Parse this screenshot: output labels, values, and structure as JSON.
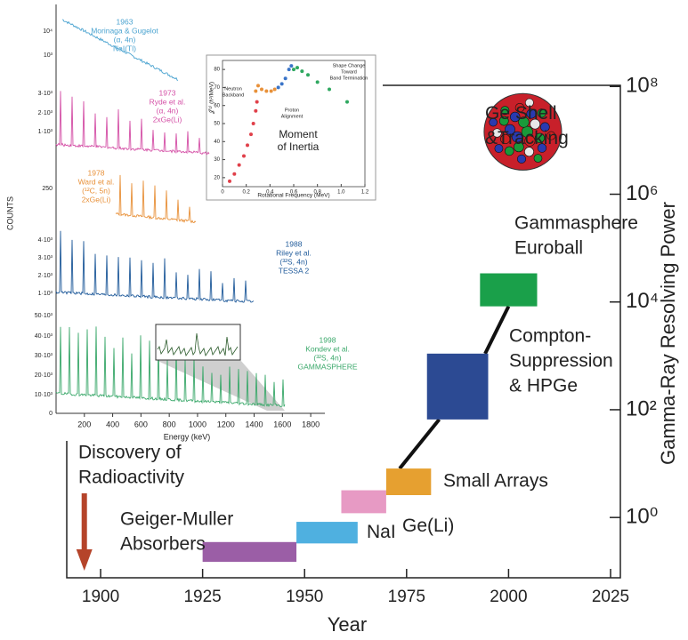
{
  "chart_data": [
    {
      "type": "range",
      "xlabel": "Year",
      "ylabel": "Gamma-Ray Resolving Power",
      "log_y": true,
      "xlim": [
        1891.7,
        2027.4
      ],
      "xticks": [
        1900,
        1925,
        1950,
        1975,
        2000,
        2025
      ],
      "ylim": [
        0.076,
        105000000
      ],
      "yticks": [
        {
          "value": 1,
          "label": "10⁰"
        },
        {
          "value": 100,
          "label": "10²"
        },
        {
          "value": 10000,
          "label": "10⁴"
        },
        {
          "value": 1000000,
          "label": "10⁶"
        },
        {
          "value": 100000000,
          "label": "10⁸"
        }
      ],
      "items": [
        {
          "label": [
            "Geiger-Muller",
            "Absorbers"
          ],
          "color": "#9b5ea6",
          "x": [
            1925,
            1948
          ],
          "y": [
            0.15,
            0.35
          ]
        },
        {
          "label": [
            "NaI"
          ],
          "color": "#4fb0e0",
          "x": [
            1948,
            1963
          ],
          "y": [
            0.33,
            0.83
          ]
        },
        {
          "label": [
            "Ge(Li)"
          ],
          "color": "#e79ac4",
          "x": [
            1959,
            1970
          ],
          "y": [
            1.2,
            3.2
          ]
        },
        {
          "label": [
            "Small Arrays"
          ],
          "color": "#e6a030",
          "x": [
            1970,
            1981
          ],
          "y": [
            2.6,
            8.1
          ]
        },
        {
          "label": [
            "Compton-",
            "Suppression",
            "& HPGe"
          ],
          "color": "#2c4a93",
          "x": [
            1980,
            1995
          ],
          "y": [
            66,
            1100
          ]
        },
        {
          "label": [
            "Gammasphere",
            "Euroball"
          ],
          "color": "#1aa04a",
          "x": [
            1993,
            2007
          ],
          "y": [
            8300,
            34000
          ]
        },
        {
          "label": [
            "Ge Shell",
            "&Tracking"
          ],
          "shape": "sphere",
          "color": "#c8202a",
          "x": [
            1994,
            2013
          ],
          "y": [
            2800000,
            74000000
          ]
        }
      ],
      "annotation": {
        "text": [
          "Discovery of",
          "Radioactivity"
        ],
        "x": 1896,
        "color": "#b5442a"
      }
    },
    {
      "type": "scatter",
      "title": [
        "Moment",
        "of Inertia"
      ],
      "xlabel": "Rotational Frequency (MeV)",
      "ylabel": "𝒥⁽¹⁾ (ℏ²/MeV)",
      "xlim": [
        0,
        1.2
      ],
      "xticks": [
        0,
        0.2,
        0.4,
        0.6,
        0.8,
        {
          "value": 1,
          "label": "1.0"
        },
        1.2
      ],
      "ylim": [
        15,
        85
      ],
      "yticks": [
        20,
        30,
        40,
        50,
        60,
        70,
        80
      ],
      "series": [
        {
          "color": "#e0404a",
          "x": [
            0.06,
            0.1,
            0.14,
            0.18,
            0.21,
            0.24,
            0.26,
            0.28,
            0.29
          ],
          "y": [
            18,
            22,
            27,
            32,
            38,
            44,
            50,
            57,
            62
          ]
        },
        {
          "color": "#e8913a",
          "x": [
            0.28,
            0.3,
            0.33,
            0.37,
            0.41,
            0.44
          ],
          "y": [
            68,
            71,
            69,
            68,
            68,
            69
          ]
        },
        {
          "color": "#3a74c8",
          "x": [
            0.47,
            0.5,
            0.53,
            0.56,
            0.58
          ],
          "y": [
            70,
            72,
            75,
            80,
            82
          ]
        },
        {
          "color": "#2fa860",
          "x": [
            0.6,
            0.63,
            0.67,
            0.72,
            0.8,
            0.9,
            1.05
          ],
          "y": [
            80,
            81,
            79,
            77,
            73,
            69,
            62
          ]
        }
      ],
      "annotations": [
        {
          "text": [
            "Neutron",
            "Backband"
          ]
        },
        {
          "text": [
            "Proton",
            "Alignment"
          ]
        },
        {
          "text": [
            "Shape Change",
            "Toward",
            "Band Termination"
          ]
        }
      ]
    },
    {
      "type": "spectra",
      "ylabel": "COUNTS",
      "xlabel": "Energy (keV)",
      "xlim": [
        0,
        1900
      ],
      "xticks": [
        200,
        400,
        600,
        800,
        1000,
        1200,
        1400,
        1600,
        1800
      ],
      "panels": [
        {
          "text": [
            "1963",
            "Morinaga & Gugelot",
            "(α, 4n)",
            "NaI(Tl)"
          ],
          "color": "#4aa3d0",
          "ticks": [
            "10⁴",
            "10³"
          ]
        },
        {
          "text": [
            "1973",
            "Ryde et al.",
            "(α, 4n)",
            "2xGe(Li)"
          ],
          "color": "#d44fa6",
          "ticks": [
            "3·10³",
            "2·10³",
            "1·10³"
          ]
        },
        {
          "text": [
            "1978",
            "Ward et al.",
            "(¹²C, 5n)",
            "2xGe(Li)"
          ],
          "color": "#e8913a",
          "ticks": [
            "250"
          ]
        },
        {
          "text": [
            "1988",
            "Riley et al.",
            "(³²S, 4n)",
            "TESSA 2"
          ],
          "color": "#1f5a9a",
          "ticks": [
            "4·10³",
            "3·10³",
            "2·10³",
            "1·10³"
          ]
        },
        {
          "text": [
            "1998",
            "Kondev et al.",
            "(³²S, 4n)",
            "GAMMASPHERE"
          ],
          "color": "#3aa86a",
          "ticks": [
            "50·10³",
            "40·10³",
            "30·10³",
            "20·10³",
            "10·10³",
            "0"
          ]
        }
      ]
    }
  ]
}
